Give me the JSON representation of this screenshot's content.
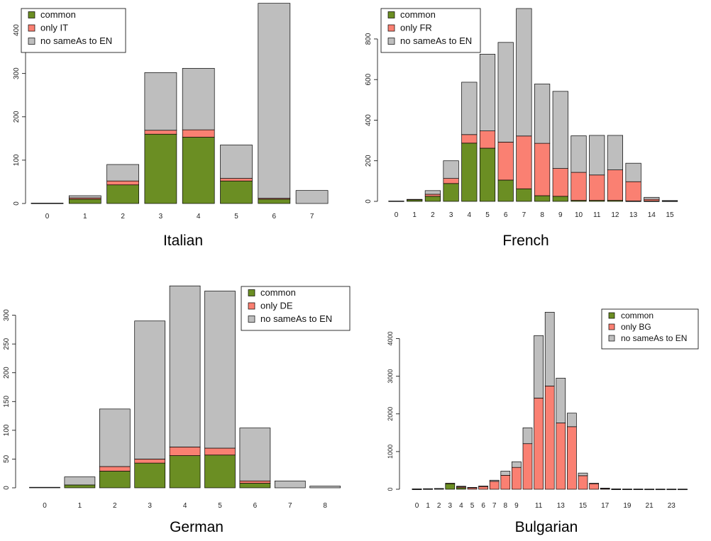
{
  "colors": {
    "common": "#6b8e23",
    "only": "#fa8072",
    "nosame": "#bebebe",
    "stroke": "#000000"
  },
  "chart_data": [
    {
      "type": "bar",
      "stacked": true,
      "title": "Italian",
      "categories": [
        "0",
        "1",
        "2",
        "3",
        "4",
        "5",
        "6",
        "7"
      ],
      "ylim": [
        0,
        450
      ],
      "yticks": [
        0,
        100,
        200,
        300,
        400
      ],
      "legend_position": "top-left",
      "series": [
        {
          "name": "common",
          "values": [
            0,
            10,
            43,
            160,
            153,
            52,
            10,
            0
          ]
        },
        {
          "name": "only IT",
          "values": [
            0,
            3,
            9,
            9,
            17,
            6,
            2,
            0
          ]
        },
        {
          "name": "no sameAs to EN",
          "values": [
            1,
            5,
            38,
            133,
            142,
            77,
            450,
            30
          ]
        }
      ]
    },
    {
      "type": "bar",
      "stacked": true,
      "title": "French",
      "categories": [
        "0",
        "1",
        "2",
        "3",
        "4",
        "5",
        "6",
        "7",
        "8",
        "9",
        "10",
        "11",
        "12",
        "13",
        "14",
        "15"
      ],
      "ylim": [
        0,
        950
      ],
      "yticks": [
        0,
        200,
        400,
        600,
        800
      ],
      "legend_position": "top-left",
      "series": [
        {
          "name": "common",
          "values": [
            0,
            8,
            25,
            88,
            287,
            262,
            105,
            62,
            28,
            25,
            5,
            5,
            5,
            2,
            2,
            0
          ]
        },
        {
          "name": "only FR",
          "values": [
            0,
            2,
            10,
            25,
            42,
            85,
            187,
            260,
            258,
            137,
            138,
            125,
            150,
            95,
            8,
            2
          ]
        },
        {
          "name": "no sameAs to EN",
          "values": [
            2,
            0,
            18,
            87,
            258,
            378,
            491,
            628,
            292,
            380,
            180,
            195,
            170,
            91,
            10,
            2
          ]
        }
      ]
    },
    {
      "type": "bar",
      "stacked": true,
      "title": "German",
      "categories": [
        "0",
        "1",
        "2",
        "3",
        "4",
        "5",
        "6",
        "7",
        "8"
      ],
      "ylim": [
        0,
        350
      ],
      "yticks": [
        0,
        50,
        100,
        150,
        200,
        250,
        300
      ],
      "legend_position": "top-right",
      "series": [
        {
          "name": "common",
          "values": [
            0,
            5,
            29,
            43,
            56,
            57,
            8,
            0,
            0
          ]
        },
        {
          "name": "only DE",
          "values": [
            0,
            0,
            8,
            7,
            15,
            12,
            4,
            0,
            0
          ]
        },
        {
          "name": "no sameAs to EN",
          "values": [
            1,
            14,
            100,
            240,
            280,
            273,
            92,
            12,
            3
          ]
        }
      ]
    },
    {
      "type": "bar",
      "stacked": true,
      "title": "Bulgarian",
      "categories": [
        "0",
        "1",
        "2",
        "3",
        "4",
        "5",
        "6",
        "7",
        "8",
        "9",
        "10",
        "11",
        "12",
        "13",
        "14",
        "15",
        "16",
        "17",
        "18",
        "19",
        "20",
        "21",
        "22",
        "23",
        "24"
      ],
      "tick_labels": [
        "0",
        "1",
        "2",
        "3",
        "4",
        "5",
        "6",
        "7",
        "8",
        "9",
        "",
        "11",
        "",
        "13",
        "",
        "15",
        "",
        "17",
        "",
        "19",
        "",
        "21",
        "",
        "23",
        ""
      ],
      "ylim": [
        0,
        4800
      ],
      "yticks": [
        0,
        1000,
        2000,
        3000,
        4000
      ],
      "legend_position": "top-right",
      "series": [
        {
          "name": "common",
          "values": [
            0,
            0,
            0,
            150,
            40,
            0,
            0,
            0,
            0,
            0,
            0,
            0,
            0,
            0,
            0,
            0,
            0,
            0,
            0,
            0,
            0,
            0,
            0,
            0,
            0
          ]
        },
        {
          "name": "only BG",
          "values": [
            5,
            10,
            15,
            10,
            35,
            45,
            80,
            210,
            370,
            580,
            1210,
            2420,
            2740,
            1760,
            1660,
            360,
            150,
            20,
            5,
            3,
            3,
            2,
            2,
            2,
            2
          ]
        },
        {
          "name": "no sameAs to EN",
          "values": [
            5,
            5,
            5,
            0,
            5,
            5,
            5,
            30,
            110,
            150,
            420,
            1660,
            1960,
            1190,
            360,
            70,
            10,
            10,
            5,
            3,
            3,
            3,
            3,
            3,
            3
          ]
        }
      ]
    }
  ]
}
